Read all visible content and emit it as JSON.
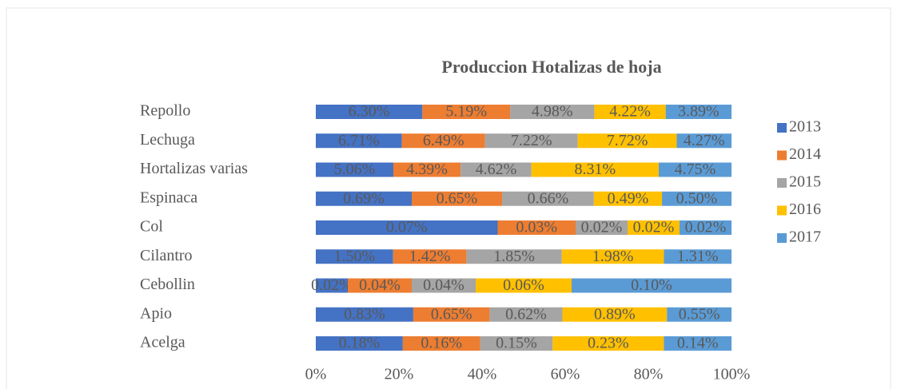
{
  "chart_data": {
    "type": "bar",
    "orientation": "horizontal",
    "stacked": "percent",
    "title": "Produccion Hotalizas de hoja",
    "categories": [
      "Repollo",
      "Lechuga",
      "Hortalizas varias",
      "Espinaca",
      "Col",
      "Cilantro",
      "Cebollin",
      "Apio",
      "Acelga"
    ],
    "series": [
      {
        "name": "2013",
        "color": "#4472c4",
        "values": [
          6.3,
          6.71,
          5.06,
          0.69,
          0.07,
          1.5,
          0.02,
          0.83,
          0.18
        ],
        "value_labels": [
          "6.30%",
          "6.71%",
          "5.06%",
          "0.69%",
          "0.07%",
          "1.50%",
          "0.02%",
          "0.83%",
          "0.18%"
        ]
      },
      {
        "name": "2014",
        "color": "#ed7d31",
        "values": [
          5.19,
          6.49,
          4.39,
          0.65,
          0.03,
          1.42,
          0.04,
          0.65,
          0.16
        ],
        "value_labels": [
          "5.19%",
          "6.49%",
          "4.39%",
          "0.65%",
          "0.03%",
          "1.42%",
          "0.04%",
          "0.65%",
          "0.16%"
        ]
      },
      {
        "name": "2015",
        "color": "#a5a5a5",
        "values": [
          4.98,
          7.22,
          4.62,
          0.66,
          0.02,
          1.85,
          0.04,
          0.62,
          0.15
        ],
        "value_labels": [
          "4.98%",
          "7.22%",
          "4.62%",
          "0.66%",
          "0.02%",
          "1.85%",
          "0.04%",
          "0.62%",
          "0.15%"
        ]
      },
      {
        "name": "2016",
        "color": "#ffc000",
        "values": [
          4.22,
          7.72,
          8.31,
          0.49,
          0.02,
          1.98,
          0.06,
          0.89,
          0.23
        ],
        "value_labels": [
          "4.22%",
          "7.72%",
          "8.31%",
          "0.49%",
          "0.02%",
          "1.98%",
          "0.06%",
          "0.89%",
          "0.23%"
        ]
      },
      {
        "name": "2017",
        "color": "#5b9bd5",
        "values": [
          3.89,
          4.27,
          4.75,
          0.5,
          0.02,
          1.31,
          0.1,
          0.55,
          0.14
        ],
        "value_labels": [
          "3.89%",
          "4.27%",
          "4.75%",
          "0.50%",
          "0.02%",
          "1.31%",
          "0.10%",
          "0.55%",
          "0.14%"
        ]
      }
    ],
    "xlim": [
      0,
      100
    ],
    "xticks": [
      {
        "value": 0,
        "label": "0%"
      },
      {
        "value": 20,
        "label": "20%"
      },
      {
        "value": 40,
        "label": "40%"
      },
      {
        "value": 60,
        "label": "60%"
      },
      {
        "value": 80,
        "label": "80%"
      },
      {
        "value": 100,
        "label": "100%"
      }
    ],
    "legend": "right"
  }
}
